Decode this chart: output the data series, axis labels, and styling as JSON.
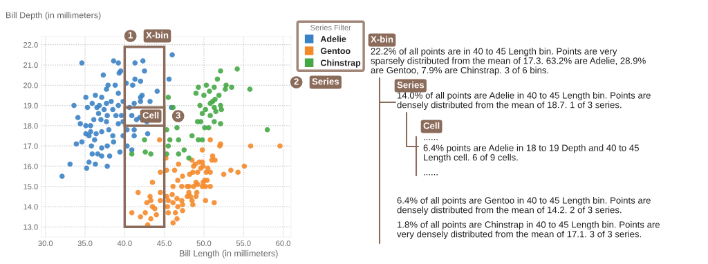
{
  "chart_data": {
    "type": "scatter",
    "xlabel": "Bill Length (in millimeters)",
    "ylabel": "Bill Depth (in millimeters)",
    "legend_title": "Series Filter",
    "legend": "top right",
    "grid": true,
    "marker": "circle",
    "xlim": [
      29.5,
      61
    ],
    "ylim": [
      12.5,
      22.4
    ],
    "xticks": [
      {
        "value": 30,
        "label": "30.0"
      },
      {
        "value": 35,
        "label": "35.0"
      },
      {
        "value": 40,
        "label": "40.0"
      },
      {
        "value": 45,
        "label": "45.0"
      },
      {
        "value": 50,
        "label": "50.0"
      },
      {
        "value": 55,
        "label": "55.0"
      },
      {
        "value": 60,
        "label": "60.0"
      }
    ],
    "yticks": [
      {
        "value": 13,
        "label": "13.0"
      },
      {
        "value": 14,
        "label": "14.0"
      },
      {
        "value": 15,
        "label": "15.0"
      },
      {
        "value": 16,
        "label": "16.0"
      },
      {
        "value": 17,
        "label": "17.0"
      },
      {
        "value": 18,
        "label": "18.0"
      },
      {
        "value": 19,
        "label": "19.0"
      },
      {
        "value": 20,
        "label": "20.0"
      },
      {
        "value": 21,
        "label": "21.0"
      },
      {
        "value": 22,
        "label": "22.0"
      }
    ],
    "series": [
      {
        "name": "Adelie",
        "color": "#3b82c4",
        "x": [
          34.6,
          38.6,
          39.2,
          41.3,
          42.3,
          46.0,
          42.5,
          39.5,
          39.3,
          37.3,
          41.3,
          42.0,
          45.6,
          40.2,
          41.0,
          37.9,
          38.8,
          37.7,
          44.1,
          39.2,
          42.0,
          42.2,
          35.1,
          36.3,
          37.1,
          33.6,
          35.3,
          35.9,
          36.8,
          37.7,
          38.3,
          39.2,
          39.8,
          41.2,
          42.0,
          43.2,
          45.9,
          40.9,
          41.5,
          41.9,
          42.8,
          34.1,
          34.4,
          35.1,
          35.7,
          36.1,
          36.7,
          37.4,
          37.8,
          38.5,
          38.9,
          39.6,
          39.8,
          39.2,
          38.0,
          37.1,
          36.4,
          35.7,
          35.1,
          38.5,
          39.8,
          37.0,
          37.7,
          40.3,
          41.2,
          40.6,
          36.5,
          33.9,
          34.6,
          35.5,
          36.2,
          35.8,
          35.9,
          36.6,
          37.1,
          38.1,
          37.1,
          37.8,
          38.6,
          39.4,
          40.3,
          40.9,
          41.2,
          42.9,
          35.5,
          36.3,
          35.2,
          33.1,
          37.8,
          32.1
        ],
        "values": [
          21.1,
          21.2,
          21.1,
          21.1,
          21.2,
          21.5,
          20.7,
          20.7,
          20.6,
          20.5,
          20.3,
          20.2,
          20.3,
          20.1,
          20.0,
          20.0,
          20.0,
          19.8,
          19.7,
          19.6,
          19.4,
          19.5,
          19.4,
          19.5,
          19.4,
          19.0,
          18.9,
          19.1,
          19.0,
          19.1,
          19.2,
          19.0,
          19.2,
          19.1,
          19.2,
          19.2,
          18.9,
          18.5,
          18.3,
          18.4,
          18.2,
          18.4,
          18.1,
          18.0,
          18.0,
          18.3,
          18.6,
          18.8,
          18.5,
          18.8,
          18.5,
          18.5,
          18.2,
          18.1,
          17.8,
          17.7,
          17.6,
          17.7,
          17.6,
          17.5,
          17.5,
          18.3,
          18.2,
          17.8,
          17.8,
          18.9,
          18.9,
          17.1,
          17.2,
          17.5,
          17.3,
          17.0,
          16.6,
          16.6,
          16.5,
          16.5,
          16.9,
          17.0,
          17.2,
          16.7,
          17.0,
          16.8,
          17.5,
          17.6,
          16.2,
          16.1,
          15.9,
          16.1,
          16.0,
          15.5
        ]
      },
      {
        "name": "Gentoo",
        "color": "#f5892a",
        "x": [
          44.4,
          44.5,
          43.5,
          41.7,
          43.2,
          43.3,
          42.8,
          43.5,
          43.8,
          40.9,
          42.6,
          42.0,
          43.3,
          44.0,
          42.9,
          44.5,
          44.5,
          45.3,
          45.2,
          45.3,
          45.5,
          46.0,
          45.4,
          45.5,
          46.1,
          46.6,
          46.7,
          47.2,
          46.4,
          47.3,
          46.6,
          46.1,
          46.3,
          46.8,
          47.3,
          46.7,
          46.1,
          47.2,
          47.9,
          48.5,
          48.7,
          48.6,
          49.0,
          48.1,
          48.5,
          48.6,
          47.9,
          47.3,
          50.8,
          49.8,
          52.1,
          52.0,
          55.9,
          59.6,
          51.1,
          51.4,
          51.0,
          48.9,
          49.4,
          49.8,
          49.9,
          49.6,
          50.5,
          50.8,
          50.3,
          49.2,
          55.1,
          53.4,
          54.3,
          52.5,
          48.2,
          50.1,
          50.4,
          49.9,
          48.1,
          48.7,
          49.2,
          49.8,
          50.2,
          50.8,
          49.1,
          48.3,
          49.0,
          50.2,
          51.3
        ],
        "values": [
          17.3,
          15.7,
          15.2,
          14.7,
          14.5,
          14.3,
          14.2,
          14.0,
          13.9,
          13.7,
          13.7,
          13.5,
          13.4,
          13.6,
          13.1,
          14.7,
          14.3,
          15.8,
          16.4,
          14.5,
          14.3,
          14.6,
          14.0,
          13.7,
          14.2,
          14.4,
          14.0,
          14.3,
          13.7,
          13.8,
          13.4,
          13.2,
          15.8,
          16.1,
          15.5,
          15.3,
          15.0,
          15.0,
          15.0,
          16.3,
          16.0,
          15.7,
          15.2,
          14.7,
          14.3,
          14.1,
          14.5,
          14.1,
          17.3,
          16.8,
          17.1,
          17.0,
          17.0,
          17.0,
          16.5,
          16.3,
          16.3,
          16.1,
          16.2,
          16.2,
          16.0,
          15.9,
          15.9,
          15.7,
          15.7,
          15.7,
          16.0,
          15.8,
          15.7,
          15.6,
          15.6,
          15.3,
          15.3,
          15.2,
          15.0,
          15.0,
          15.1,
          15.0,
          15.0,
          15.0,
          14.7,
          14.5,
          14.5,
          14.3,
          14.2
        ]
      },
      {
        "name": "Chinstrap",
        "color": "#45a845",
        "x": [
          40.9,
          42.5,
          42.6,
          43.3,
          52.1,
          54.2,
          51.7,
          49.3,
          50.3,
          51.3,
          52.8,
          53.5,
          52.7,
          55.8,
          49.0,
          50.0,
          50.7,
          51.9,
          49.5,
          50.8,
          51.1,
          51.4,
          51.3,
          52.1,
          52.2,
          51.5,
          50.2,
          49.8,
          50.8,
          49.2,
          49.6,
          51.3,
          52.1,
          50.1,
          50.6,
          58.0,
          48.5,
          45.5,
          46.1,
          46.6,
          45.3,
          45.7,
          45.5,
          46.8,
          47.5,
          46.8,
          45.3,
          49.3,
          48.1,
          49.8
        ],
        "values": [
          16.6,
          17.3,
          16.7,
          16.6,
          20.7,
          20.8,
          20.3,
          19.9,
          20.0,
          19.9,
          20.0,
          19.9,
          19.8,
          19.8,
          19.6,
          19.5,
          19.7,
          19.5,
          19.0,
          19.1,
          19.2,
          19.3,
          18.9,
          19.0,
          18.8,
          18.7,
          18.8,
          18.6,
          18.5,
          18.2,
          18.2,
          18.2,
          18.1,
          17.9,
          17.9,
          17.8,
          17.5,
          19.4,
          18.9,
          17.9,
          17.8,
          17.3,
          17.0,
          17.3,
          16.8,
          16.6,
          16.6,
          17.3,
          16.4,
          17.3
        ]
      }
    ],
    "annotations": [
      "1",
      "X-bin",
      "Cell",
      "3",
      "2",
      "Series",
      "X-bin",
      "22.2% of all points are in 40 to 45 Length bin. Points are very\nsparsely distributed from the mean of 17.3. 63.2% are Adelie, 28.9%\nare Gentoo, 7.9% are Chinstrap. 3 of 6 bins.",
      "Series",
      "14.0% of all points are Adelie in 40 to 45 Length bin. Points are\ndensely distributed from the mean of 18.7. 1 of 3 series.",
      "Cell",
      "......",
      "6.4% points are Adelie in 18 to 19 Depth and 40 to 45\nLength cell. 6 of 9 cells.",
      "......",
      "6.4% of all points are Gentoo in 40 to 45 Length bin. Points are\ndensely distributed from the mean of 14.2. 2 of 3 series.",
      "1.8% of all points are Chinstrap in 40 to 45 Length bin. Points are\nvery densely distributed from the mean of 17.1. 3 of 3 series."
    ]
  }
}
